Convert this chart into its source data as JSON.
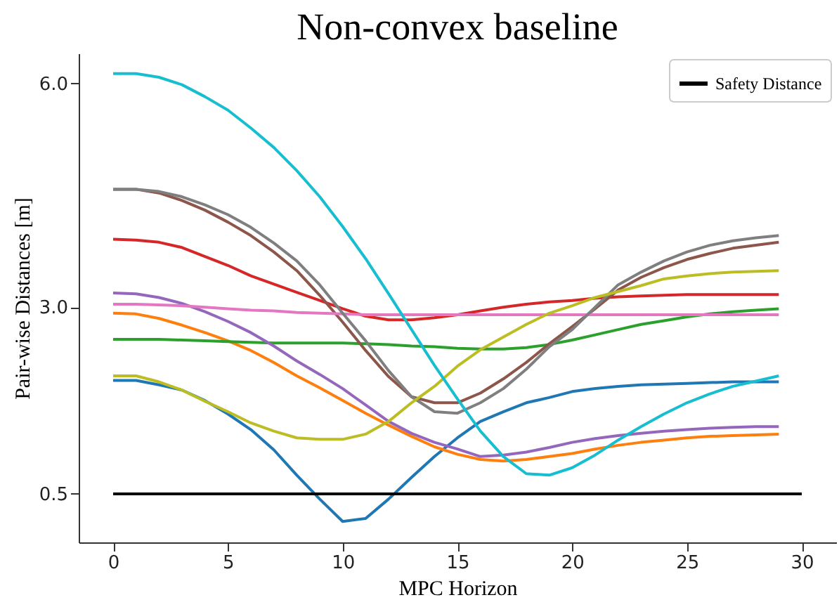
{
  "chart_data": {
    "type": "line",
    "title": "Non-convex baseline",
    "xlabel": "MPC Horizon",
    "ylabel": "Pair-wise Distances [m]",
    "x": [
      0,
      1,
      2,
      3,
      4,
      5,
      6,
      7,
      8,
      9,
      10,
      11,
      12,
      13,
      14,
      15,
      16,
      17,
      18,
      19,
      20,
      21,
      22,
      23,
      24,
      25,
      26,
      27,
      28,
      29
    ],
    "xlim": [
      -1.5,
      31.5
    ],
    "xticks": [
      0,
      5,
      10,
      15,
      20,
      25,
      30
    ],
    "ylim": [
      -0.15,
      6.4
    ],
    "yticks": [
      0.5,
      {
        "value": 3,
        "label": "3.0"
      },
      {
        "value": 6,
        "label": "6.0"
      }
    ],
    "legend": "top right",
    "line_style": "solid",
    "series": [
      {
        "color": "#1f77b4",
        "values": [
          2.02,
          2.02,
          1.96,
          1.89,
          1.75,
          1.57,
          1.36,
          1.09,
          0.75,
          0.43,
          0.13,
          0.17,
          0.43,
          0.72,
          1.0,
          1.25,
          1.47,
          1.6,
          1.72,
          1.79,
          1.87,
          1.91,
          1.94,
          1.96,
          1.97,
          1.98,
          1.99,
          2.0,
          2.0,
          2.0
        ]
      },
      {
        "color": "#ff7f0e",
        "values": [
          2.92,
          2.91,
          2.85,
          2.76,
          2.66,
          2.55,
          2.42,
          2.26,
          2.08,
          1.92,
          1.75,
          1.58,
          1.42,
          1.27,
          1.13,
          1.03,
          0.96,
          0.94,
          0.96,
          1.0,
          1.04,
          1.1,
          1.15,
          1.19,
          1.22,
          1.25,
          1.27,
          1.28,
          1.29,
          1.3
        ]
      },
      {
        "color": "#2ca02c",
        "values": [
          2.57,
          2.57,
          2.57,
          2.56,
          2.55,
          2.54,
          2.53,
          2.52,
          2.52,
          2.52,
          2.52,
          2.51,
          2.5,
          2.48,
          2.47,
          2.45,
          2.44,
          2.44,
          2.46,
          2.5,
          2.56,
          2.63,
          2.7,
          2.77,
          2.82,
          2.87,
          2.91,
          2.94,
          2.96,
          2.98
        ]
      },
      {
        "color": "#d62728",
        "values": [
          3.91,
          3.9,
          3.87,
          3.8,
          3.68,
          3.56,
          3.42,
          3.31,
          3.2,
          3.09,
          2.98,
          2.88,
          2.83,
          2.83,
          2.86,
          2.9,
          2.95,
          3.0,
          3.04,
          3.07,
          3.09,
          3.12,
          3.14,
          3.15,
          3.16,
          3.17,
          3.17,
          3.17,
          3.17,
          3.17
        ]
      },
      {
        "color": "#9467bd",
        "values": [
          3.19,
          3.18,
          3.13,
          3.05,
          2.94,
          2.81,
          2.66,
          2.48,
          2.28,
          2.1,
          1.91,
          1.69,
          1.47,
          1.31,
          1.19,
          1.1,
          1.0,
          1.02,
          1.06,
          1.12,
          1.19,
          1.24,
          1.28,
          1.31,
          1.34,
          1.36,
          1.38,
          1.39,
          1.4,
          1.4
        ]
      },
      {
        "color": "#8c564b",
        "values": [
          4.58,
          4.58,
          4.53,
          4.43,
          4.3,
          4.14,
          3.96,
          3.74,
          3.49,
          3.16,
          2.8,
          2.42,
          2.07,
          1.8,
          1.72,
          1.72,
          1.85,
          2.04,
          2.26,
          2.51,
          2.74,
          2.98,
          3.23,
          3.4,
          3.53,
          3.64,
          3.72,
          3.79,
          3.83,
          3.87
        ]
      },
      {
        "color": "#e377c2",
        "values": [
          3.04,
          3.04,
          3.03,
          3.02,
          3.0,
          2.98,
          2.96,
          2.95,
          2.93,
          2.92,
          2.91,
          2.9,
          2.9,
          2.9,
          2.9,
          2.9,
          2.9,
          2.9,
          2.9,
          2.9,
          2.9,
          2.9,
          2.9,
          2.9,
          2.9,
          2.9,
          2.9,
          2.9,
          2.9,
          2.9
        ]
      },
      {
        "color": "#7f7f7f",
        "values": [
          4.58,
          4.58,
          4.55,
          4.48,
          4.37,
          4.24,
          4.07,
          3.86,
          3.62,
          3.3,
          2.92,
          2.55,
          2.15,
          1.8,
          1.6,
          1.58,
          1.72,
          1.91,
          2.17,
          2.47,
          2.7,
          3.0,
          3.3,
          3.47,
          3.62,
          3.74,
          3.83,
          3.89,
          3.93,
          3.96
        ]
      },
      {
        "color": "#bcbd22",
        "values": [
          2.08,
          2.08,
          2.0,
          1.89,
          1.74,
          1.6,
          1.45,
          1.34,
          1.25,
          1.23,
          1.23,
          1.3,
          1.47,
          1.72,
          1.94,
          2.21,
          2.43,
          2.6,
          2.77,
          2.92,
          3.02,
          3.13,
          3.21,
          3.29,
          3.38,
          3.42,
          3.45,
          3.47,
          3.48,
          3.49
        ]
      },
      {
        "color": "#17becf",
        "values": [
          6.13,
          6.13,
          6.08,
          5.98,
          5.82,
          5.64,
          5.4,
          5.14,
          4.83,
          4.48,
          4.08,
          3.65,
          3.18,
          2.7,
          2.22,
          1.77,
          1.34,
          1.0,
          0.77,
          0.75,
          0.85,
          1.02,
          1.22,
          1.4,
          1.57,
          1.72,
          1.84,
          1.94,
          2.01,
          2.08
        ]
      },
      {
        "name": "Safety Distance",
        "color": "#000000",
        "x": [
          0,
          30
        ],
        "values": [
          0.5,
          0.5
        ]
      }
    ]
  }
}
